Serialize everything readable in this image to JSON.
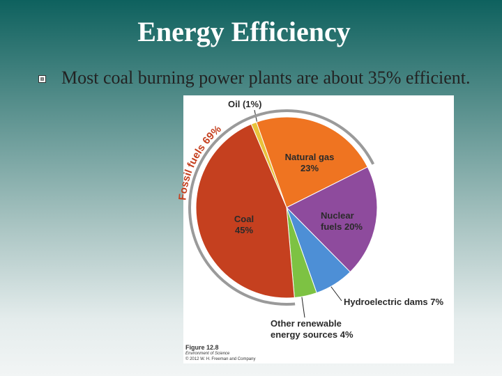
{
  "slide": {
    "title": "Energy Efficiency",
    "bullets": [
      "Most coal burning power plants are about 35% efficient."
    ]
  },
  "chart_data": {
    "type": "pie",
    "categories": [
      "Oil",
      "Natural gas",
      "Nuclear fuels",
      "Hydroelectric dams",
      "Other renewable energy sources",
      "Coal"
    ],
    "values": [
      1,
      23,
      20,
      7,
      4,
      45
    ],
    "value_labels": [
      "(1%)",
      "23%",
      "20%",
      "7%",
      "4%",
      "45%"
    ],
    "colors": [
      "#e9c23b",
      "#ef7421",
      "#8e4b9d",
      "#4d8fd6",
      "#7dc243",
      "#c5401f"
    ],
    "annotation": {
      "label": "Fossil fuels",
      "value": 69,
      "value_label": "69%"
    },
    "caption": {
      "figure": "Figure 12.8",
      "book": "Environment of Science",
      "credit": "© 2012 W. H. Freeman and Company"
    }
  }
}
